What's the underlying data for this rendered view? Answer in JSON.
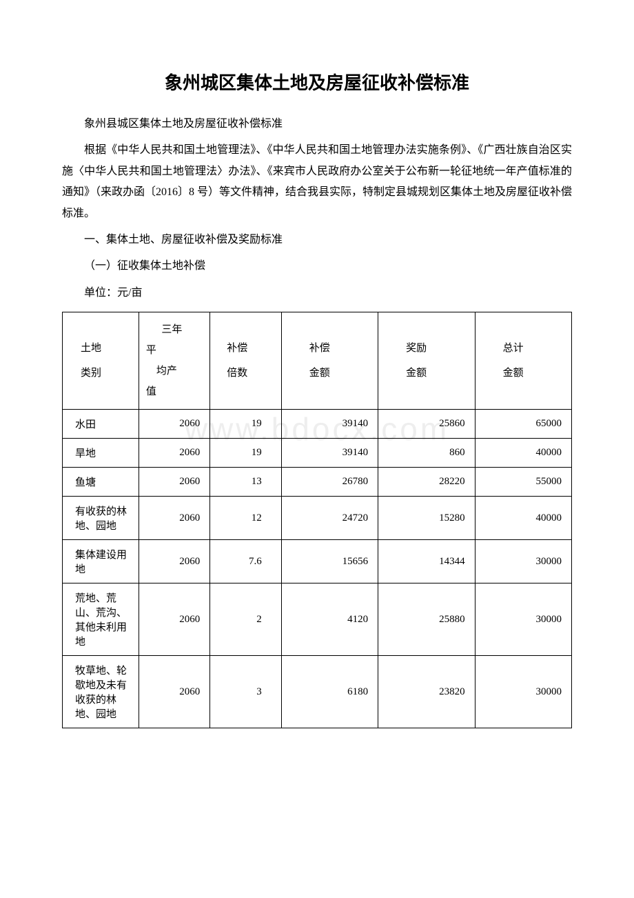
{
  "title": "象州城区集体土地及房屋征收补偿标准",
  "subtitle": "象州县城区集体土地及房屋征收补偿标准",
  "intro": "根据《中华人民共和国土地管理法》、《中华人民共和国土地管理办法实施条例》、《广西壮族自治区实施〈中华人民共和国土地管理法〉办法》、《来宾市人民政府办公室关于公布新一轮征地统一年产值标准的通知》（来政办函〔2016〕8 号）等文件精神，结合我县实际，特制定县城规划区集体土地及房屋征收补偿标准。",
  "section1": "一、集体土地、房屋征收补偿及奖励标准",
  "section1_1": "（一）征收集体土地补偿",
  "unit": "单位：元/亩",
  "watermark": "www.bdocx.com",
  "table": {
    "headers": {
      "c0a": "土地",
      "c0b": "类别",
      "c1a": "三年",
      "c1b": "平",
      "c1c": "均产",
      "c1d": "值",
      "c2a": "补偿",
      "c2b": "倍数",
      "c3a": "补偿",
      "c3b": "金额",
      "c4a": "奖励",
      "c4b": "金额",
      "c5a": "总计",
      "c5b": "金额"
    },
    "rows": [
      {
        "c0": "水田",
        "c1": "2060",
        "c2": "19",
        "c3": "39140",
        "c4": "25860",
        "c5": "65000"
      },
      {
        "c0": "旱地",
        "c1": "2060",
        "c2": "19",
        "c3": "39140",
        "c4": "860",
        "c5": "40000"
      },
      {
        "c0": "鱼塘",
        "c1": "2060",
        "c2": "13",
        "c3": "26780",
        "c4": "28220",
        "c5": "55000"
      },
      {
        "c0": "有收获的林地、园地",
        "c1": "2060",
        "c2": "12",
        "c3": "24720",
        "c4": "15280",
        "c5": "40000"
      },
      {
        "c0": "集体建设用地",
        "c1": "2060",
        "c2": "7.6",
        "c3": "15656",
        "c4": "14344",
        "c5": "30000"
      },
      {
        "c0": "荒地、荒山、荒沟、其他未利用地",
        "c1": "2060",
        "c2": "2",
        "c3": "4120",
        "c4": "25880",
        "c5": "30000"
      },
      {
        "c0": "牧草地、轮歇地及未有收获的林地、园地",
        "c1": "2060",
        "c2": "3",
        "c3": "6180",
        "c4": "23820",
        "c5": "30000"
      }
    ]
  }
}
